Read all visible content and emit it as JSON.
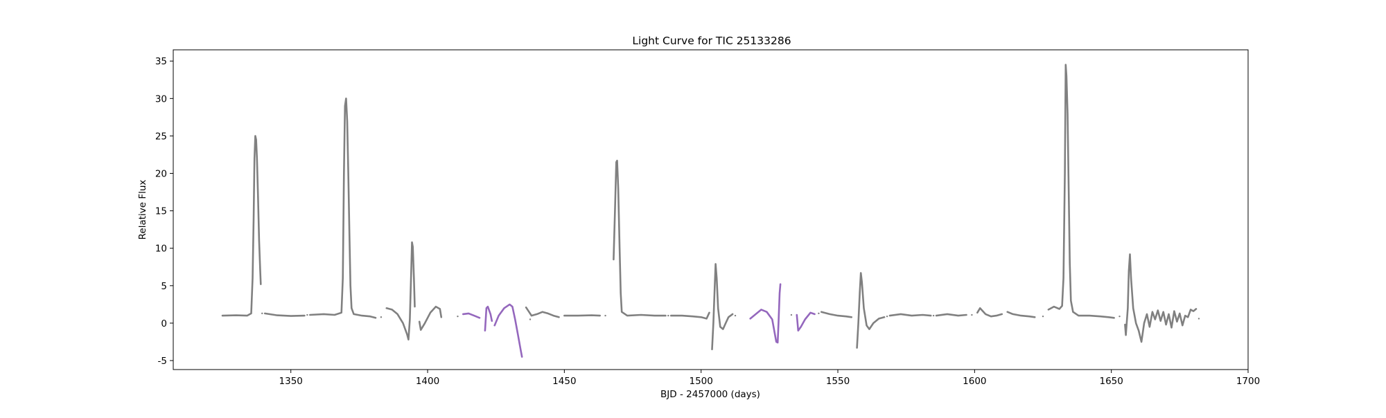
{
  "chart_data": {
    "type": "scatter",
    "title": "Light Curve for TIC 25133286",
    "xlabel": "BJD - 2457000 (days)",
    "ylabel": "Relative Flux",
    "xlim": [
      1307,
      1700
    ],
    "ylim": [
      -6.2,
      36.5
    ],
    "xticks": [
      1350,
      1400,
      1450,
      1500,
      1550,
      1600,
      1650,
      1700
    ],
    "yticks": [
      -5,
      0,
      5,
      10,
      15,
      20,
      25,
      30,
      35
    ],
    "grid": false,
    "legend": "none",
    "colors": {
      "default": "#808080",
      "highlight": "#9467bd"
    },
    "series": [
      {
        "color": "default",
        "points": [
          [
            1325,
            1.0
          ],
          [
            1330,
            1.05
          ],
          [
            1334,
            1.0
          ],
          [
            1335.5,
            1.3
          ],
          [
            1336,
            6
          ],
          [
            1336.4,
            14
          ],
          [
            1336.7,
            22
          ],
          [
            1337,
            25
          ],
          [
            1337.3,
            24.5
          ],
          [
            1337.6,
            22
          ],
          [
            1338,
            17
          ],
          [
            1338.4,
            11
          ],
          [
            1338.8,
            7
          ],
          [
            1339,
            5.2
          ]
        ]
      },
      {
        "color": "default",
        "points": [
          [
            1340.5,
            1.3
          ],
          [
            1345,
            1.05
          ],
          [
            1350,
            0.95
          ],
          [
            1355,
            1.0
          ]
        ]
      },
      {
        "color": "default",
        "points": [
          [
            1357,
            1.1
          ],
          [
            1362,
            1.2
          ],
          [
            1366,
            1.1
          ],
          [
            1368.5,
            1.4
          ],
          [
            1369,
            6
          ],
          [
            1369.4,
            20
          ],
          [
            1369.8,
            29
          ],
          [
            1370.2,
            30
          ],
          [
            1370.6,
            27
          ],
          [
            1371,
            20
          ],
          [
            1371.4,
            12
          ],
          [
            1371.8,
            5
          ],
          [
            1372.2,
            2
          ],
          [
            1373,
            1.2
          ],
          [
            1376,
            1.0
          ],
          [
            1379,
            0.9
          ],
          [
            1381,
            0.7
          ]
        ]
      },
      {
        "color": "default",
        "points": [
          [
            1385,
            2.0
          ],
          [
            1387,
            1.8
          ],
          [
            1389,
            1.2
          ],
          [
            1391,
            0
          ],
          [
            1392.5,
            -1.5
          ],
          [
            1393,
            -2.2
          ],
          [
            1393.5,
            0.5
          ],
          [
            1394,
            7
          ],
          [
            1394.3,
            10.8
          ],
          [
            1394.6,
            10.2
          ],
          [
            1395,
            6
          ],
          [
            1395.3,
            2.2
          ]
        ]
      },
      {
        "color": "default",
        "points": [
          [
            1397,
            0.2
          ],
          [
            1397.5,
            -0.9
          ],
          [
            1399,
            0
          ],
          [
            1401,
            1.4
          ],
          [
            1403,
            2.2
          ],
          [
            1404.5,
            1.9
          ],
          [
            1405,
            0.8
          ]
        ]
      },
      {
        "color": "highlight",
        "points": [
          [
            1413,
            1.2
          ],
          [
            1415,
            1.3
          ],
          [
            1417,
            1.0
          ],
          [
            1419,
            0.7
          ]
        ]
      },
      {
        "color": "highlight",
        "points": [
          [
            1421,
            -1.0
          ],
          [
            1421.5,
            2.0
          ],
          [
            1422,
            2.2
          ],
          [
            1423,
            1.2
          ],
          [
            1423.5,
            0.3
          ]
        ]
      },
      {
        "color": "highlight",
        "points": [
          [
            1424.5,
            -0.3
          ],
          [
            1426,
            1.0
          ],
          [
            1428,
            2.0
          ],
          [
            1430,
            2.5
          ],
          [
            1431,
            2.2
          ],
          [
            1432,
            0.5
          ],
          [
            1433,
            -1.5
          ],
          [
            1434,
            -3.5
          ],
          [
            1434.5,
            -4.5
          ]
        ]
      },
      {
        "color": "default",
        "points": [
          [
            1436,
            2.1
          ],
          [
            1438,
            1.0
          ],
          [
            1440,
            1.2
          ],
          [
            1442,
            1.5
          ],
          [
            1444,
            1.3
          ],
          [
            1446,
            1.0
          ],
          [
            1448,
            0.8
          ]
        ]
      },
      {
        "color": "default",
        "points": [
          [
            1450,
            1.0
          ],
          [
            1455,
            1.0
          ],
          [
            1460,
            1.05
          ],
          [
            1463,
            1.0
          ]
        ]
      },
      {
        "color": "default",
        "points": [
          [
            1468,
            8.5
          ],
          [
            1468.5,
            15
          ],
          [
            1469,
            21.5
          ],
          [
            1469.3,
            21.7
          ],
          [
            1469.7,
            18
          ],
          [
            1470.2,
            10
          ],
          [
            1470.6,
            4
          ],
          [
            1471,
            1.5
          ],
          [
            1473,
            1.0
          ],
          [
            1478,
            1.1
          ],
          [
            1483,
            1.0
          ],
          [
            1487,
            1.0
          ]
        ]
      },
      {
        "color": "default",
        "points": [
          [
            1489,
            1.0
          ],
          [
            1493,
            1.0
          ],
          [
            1497,
            0.9
          ],
          [
            1500,
            0.8
          ],
          [
            1502,
            0.6
          ],
          [
            1503,
            1.4
          ]
        ]
      },
      {
        "color": "default",
        "points": [
          [
            1504,
            -3.5
          ],
          [
            1504.5,
            0
          ],
          [
            1505,
            5
          ],
          [
            1505.3,
            7.9
          ],
          [
            1505.7,
            6
          ],
          [
            1506.2,
            2
          ],
          [
            1507,
            -0.5
          ],
          [
            1508,
            -0.8
          ],
          [
            1509,
            0
          ],
          [
            1510,
            0.8
          ],
          [
            1511.5,
            1.2
          ]
        ]
      },
      {
        "color": "highlight",
        "points": [
          [
            1518,
            0.6
          ],
          [
            1520,
            1.2
          ],
          [
            1522,
            1.8
          ],
          [
            1524,
            1.5
          ],
          [
            1526,
            0.5
          ],
          [
            1527,
            -1.5
          ],
          [
            1527.5,
            -2.5
          ],
          [
            1528,
            -2.6
          ],
          [
            1528.3,
            0
          ],
          [
            1528.7,
            4
          ],
          [
            1529,
            5.2
          ]
        ]
      },
      {
        "color": "highlight",
        "points": [
          [
            1535,
            1.1
          ],
          [
            1535.5,
            -1.0
          ],
          [
            1536.5,
            -0.5
          ],
          [
            1538,
            0.5
          ],
          [
            1540,
            1.4
          ],
          [
            1541.5,
            1.2
          ]
        ]
      },
      {
        "color": "default",
        "points": [
          [
            1544,
            1.5
          ],
          [
            1547,
            1.2
          ],
          [
            1550,
            1.0
          ],
          [
            1553,
            0.9
          ],
          [
            1555,
            0.8
          ]
        ]
      },
      {
        "color": "default",
        "points": [
          [
            1557,
            -3.3
          ],
          [
            1557.5,
            0
          ],
          [
            1558,
            4
          ],
          [
            1558.4,
            6.7
          ],
          [
            1558.8,
            5.5
          ],
          [
            1559.5,
            2
          ],
          [
            1560.5,
            -0.3
          ],
          [
            1561.5,
            -0.8
          ],
          [
            1563,
            0
          ],
          [
            1565,
            0.6
          ],
          [
            1567,
            0.8
          ]
        ]
      },
      {
        "color": "default",
        "points": [
          [
            1569,
            1.0
          ],
          [
            1573,
            1.2
          ],
          [
            1577,
            1.0
          ],
          [
            1581,
            1.1
          ],
          [
            1584,
            1.0
          ]
        ]
      },
      {
        "color": "default",
        "points": [
          [
            1586,
            1.0
          ],
          [
            1590,
            1.2
          ],
          [
            1594,
            1.0
          ],
          [
            1597,
            1.1
          ]
        ]
      },
      {
        "color": "default",
        "points": [
          [
            1601,
            1.4
          ],
          [
            1602,
            2.0
          ],
          [
            1604,
            1.2
          ],
          [
            1606,
            0.9
          ],
          [
            1608,
            1.0
          ],
          [
            1610,
            1.2
          ]
        ]
      },
      {
        "color": "default",
        "points": [
          [
            1612,
            1.5
          ],
          [
            1614,
            1.2
          ],
          [
            1617,
            1.0
          ],
          [
            1620,
            0.9
          ],
          [
            1622,
            0.8
          ]
        ]
      },
      {
        "color": "default",
        "points": [
          [
            1627,
            1.8
          ],
          [
            1629,
            2.2
          ],
          [
            1631,
            1.9
          ],
          [
            1632,
            2.3
          ],
          [
            1632.5,
            6
          ],
          [
            1633,
            20
          ],
          [
            1633.3,
            34.5
          ],
          [
            1633.6,
            33
          ],
          [
            1634,
            28
          ],
          [
            1634.4,
            18
          ],
          [
            1634.8,
            8
          ],
          [
            1635.2,
            3
          ],
          [
            1636,
            1.5
          ],
          [
            1638,
            1.0
          ],
          [
            1642,
            1.0
          ],
          [
            1646,
            0.9
          ],
          [
            1649,
            0.8
          ],
          [
            1651,
            0.7
          ]
        ]
      },
      {
        "color": "default",
        "points": [
          [
            1655,
            -0.2
          ],
          [
            1655.3,
            -1.6
          ],
          [
            1656,
            2
          ],
          [
            1656.4,
            7
          ],
          [
            1656.8,
            9.2
          ],
          [
            1657.2,
            6
          ],
          [
            1658,
            2
          ],
          [
            1659,
            0
          ],
          [
            1660,
            -1.0
          ],
          [
            1661,
            -2.5
          ],
          [
            1662,
            0
          ],
          [
            1663,
            1.2
          ],
          [
            1664,
            -0.5
          ],
          [
            1665,
            1.5
          ],
          [
            1666,
            0.5
          ],
          [
            1667,
            1.7
          ],
          [
            1668,
            0.3
          ],
          [
            1669,
            1.5
          ],
          [
            1670,
            -0.2
          ],
          [
            1671,
            1.2
          ],
          [
            1672,
            -0.6
          ],
          [
            1673,
            1.6
          ],
          [
            1674,
            0.2
          ],
          [
            1675,
            1.3
          ],
          [
            1676,
            -0.3
          ],
          [
            1677,
            1.0
          ],
          [
            1678,
            0.8
          ],
          [
            1679,
            1.8
          ],
          [
            1680,
            1.6
          ],
          [
            1681,
            1.9
          ]
        ]
      }
    ],
    "stray_points": [
      [
        1339.5,
        1.3
      ],
      [
        1356,
        1.1
      ],
      [
        1383,
        0.8
      ],
      [
        1411,
        0.9
      ],
      [
        1437.5,
        0.5
      ],
      [
        1465,
        1.0
      ],
      [
        1488,
        1.0
      ],
      [
        1512.5,
        1.0
      ],
      [
        1533,
        1.1
      ],
      [
        1543,
        1.3
      ],
      [
        1568,
        0.9
      ],
      [
        1585,
        1.0
      ],
      [
        1599,
        1.1
      ],
      [
        1625,
        0.9
      ],
      [
        1653,
        0.9
      ],
      [
        1682,
        0.6
      ]
    ]
  }
}
